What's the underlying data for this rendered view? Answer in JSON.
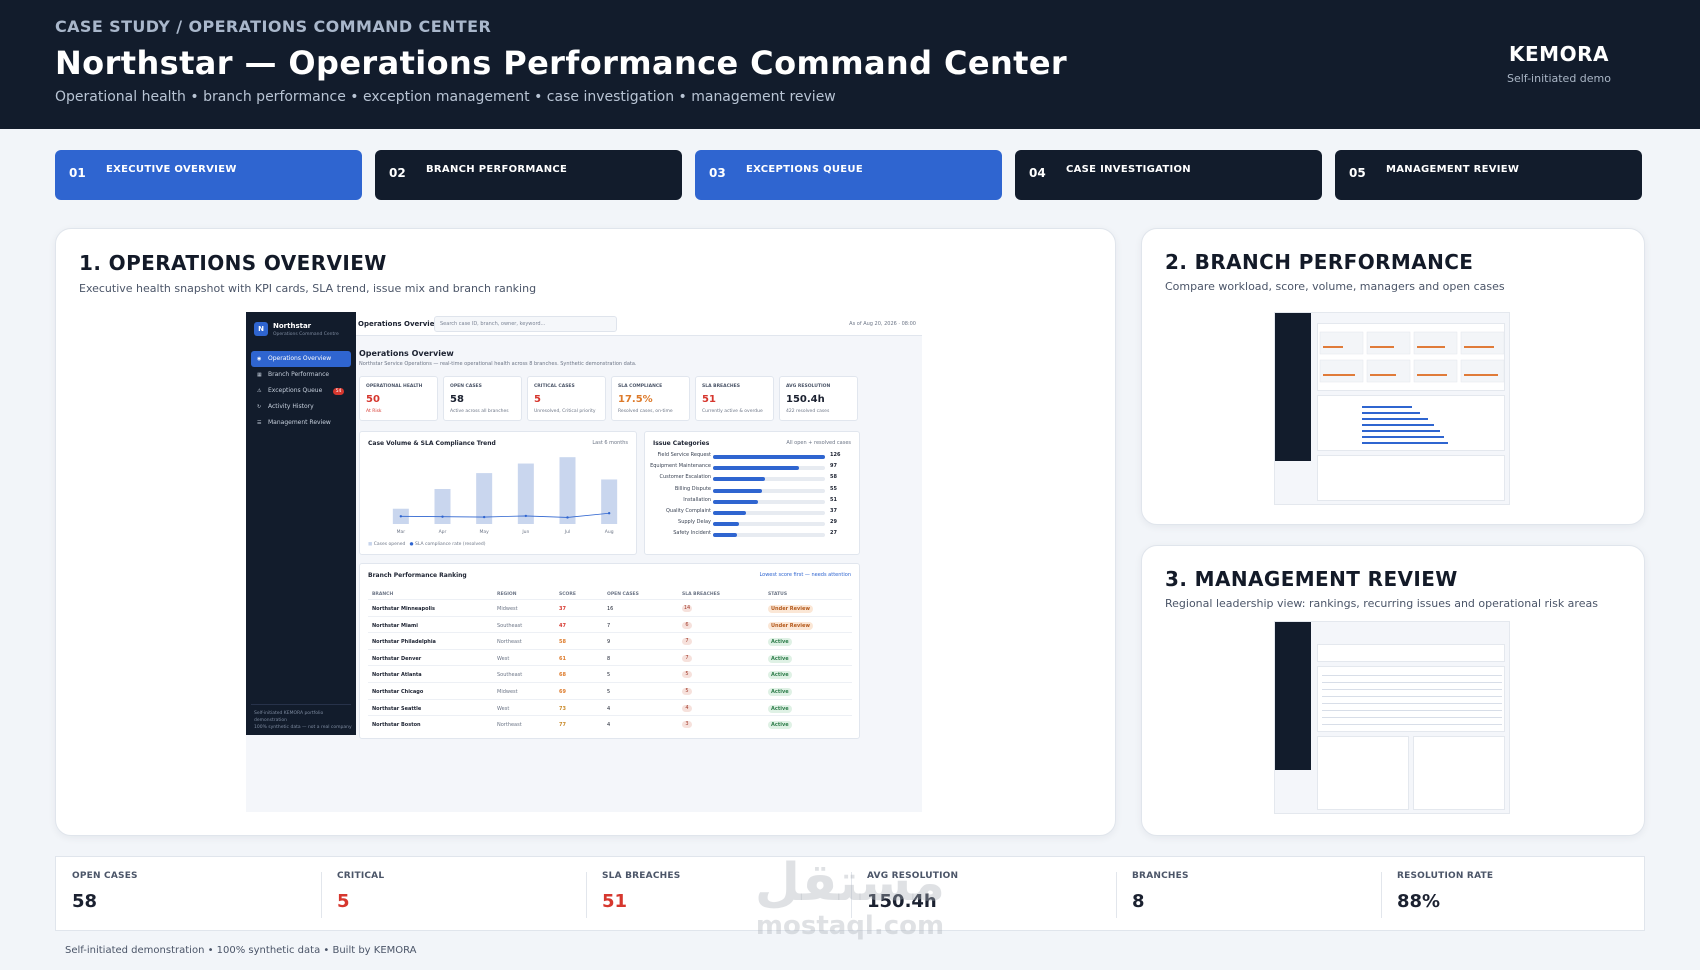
{
  "header": {
    "eyebrow": "CASE STUDY / OPERATIONS COMMAND CENTER",
    "title": "Northstar — Operations Performance Command Center",
    "subtitle": "Operational health • branch performance • exception management • case investigation • management review",
    "brand": "KEMORA",
    "brand_note": "Self-initiated demo"
  },
  "tabs": [
    {
      "num": "01",
      "label": "EXECUTIVE OVERVIEW",
      "active": true
    },
    {
      "num": "02",
      "label": "BRANCH PERFORMANCE",
      "active": false
    },
    {
      "num": "03",
      "label": "EXCEPTIONS QUEUE",
      "active": true
    },
    {
      "num": "04",
      "label": "CASE INVESTIGATION",
      "active": false
    },
    {
      "num": "05",
      "label": "MANAGEMENT REVIEW",
      "active": false
    }
  ],
  "overview": {
    "title": "1. OPERATIONS OVERVIEW",
    "desc": "Executive health snapshot with KPI cards, SLA trend, issue mix and branch ranking",
    "app": {
      "logo_letter": "N",
      "app_name": "Northstar",
      "app_sub": "Operations Command Centre",
      "nav": [
        {
          "label": "Operations Overview",
          "icon": "◉",
          "active": true
        },
        {
          "label": "Branch Performance",
          "icon": "▦",
          "active": false
        },
        {
          "label": "Exceptions Queue",
          "icon": "⚠",
          "active": false,
          "badge": "54"
        },
        {
          "label": "Activity History",
          "icon": "↻",
          "active": false
        },
        {
          "label": "Management Review",
          "icon": "☰",
          "active": false
        }
      ],
      "footer_1": "Self-initiated KEMORA portfolio",
      "footer_2": "demonstration",
      "footer_3": "100% synthetic data — not a real company",
      "topbar_title": "Operations Overview",
      "search_placeholder": "Search case ID, branch, owner, keyword...",
      "as_of": "As of Aug 20, 2026 · 08:00",
      "page_title": "Operations Overview",
      "page_sub": "Northstar Service Operations — real-time operational health across 8 branches. Synthetic demonstration data.",
      "kpis": [
        {
          "label": "OPERATIONAL HEALTH",
          "value": "50",
          "sub": "At Risk",
          "color": "#d6372e"
        },
        {
          "label": "OPEN CASES",
          "value": "58",
          "sub": "Active across all branches",
          "color": "#1b2130"
        },
        {
          "label": "CRITICAL CASES",
          "value": "5",
          "sub": "Unresolved, Critical priority",
          "color": "#d6372e"
        },
        {
          "label": "SLA COMPLIANCE",
          "value": "17.5%",
          "sub": "Resolved cases, on-time",
          "color": "#dd7a2a"
        },
        {
          "label": "SLA BREACHES",
          "value": "51",
          "sub": "Currently active & overdue",
          "color": "#d6372e"
        },
        {
          "label": "AVG RESOLUTION",
          "value": "150.4h",
          "sub": "422 resolved cases",
          "color": "#1b2130"
        }
      ],
      "trend": {
        "title": "Case Volume & SLA Compliance Trend",
        "range": "Last 6 months",
        "legend_bars": "Cases opened",
        "legend_line": "SLA compliance rate (resolved)"
      },
      "issues": {
        "title": "Issue Categories",
        "note": "All open + resolved cases"
      },
      "ranking": {
        "title": "Branch Performance Ranking",
        "note": "Lowest score first — needs attention",
        "headers": [
          "BRANCH",
          "REGION",
          "SCORE",
          "OPEN CASES",
          "SLA BREACHES",
          "STATUS"
        ],
        "rows": [
          {
            "branch": "Northstar Minneapolis",
            "region": "Midwest",
            "score": "37",
            "open": "16",
            "breaches": "14",
            "status": "Under Review"
          },
          {
            "branch": "Northstar Miami",
            "region": "Southeast",
            "score": "47",
            "open": "7",
            "breaches": "6",
            "status": "Under Review"
          },
          {
            "branch": "Northstar Philadelphia",
            "region": "Northeast",
            "score": "58",
            "open": "9",
            "breaches": "7",
            "status": "Active"
          },
          {
            "branch": "Northstar Denver",
            "region": "West",
            "score": "61",
            "open": "8",
            "breaches": "7",
            "status": "Active"
          },
          {
            "branch": "Northstar Atlanta",
            "region": "Southeast",
            "score": "68",
            "open": "5",
            "breaches": "5",
            "status": "Active"
          },
          {
            "branch": "Northstar Chicago",
            "region": "Midwest",
            "score": "69",
            "open": "5",
            "breaches": "5",
            "status": "Active"
          },
          {
            "branch": "Northstar Seattle",
            "region": "West",
            "score": "73",
            "open": "4",
            "breaches": "4",
            "status": "Active"
          },
          {
            "branch": "Northstar Boston",
            "region": "Northeast",
            "score": "77",
            "open": "4",
            "breaches": "3",
            "status": "Active"
          }
        ]
      }
    }
  },
  "chart_data": [
    {
      "type": "bar",
      "categories": [
        "Mar",
        "Apr",
        "May",
        "Jun",
        "Jul",
        "Aug"
      ],
      "series": [
        {
          "name": "Cases opened",
          "values": [
            24,
            55,
            80,
            95,
            105,
            70
          ]
        },
        {
          "name": "SLA compliance rate (resolved)",
          "values": [
            20,
            19,
            18,
            21,
            17,
            28
          ]
        }
      ]
    },
    {
      "type": "bar",
      "categories": [
        "Field Service Request",
        "Equipment Maintenance",
        "Customer Escalation",
        "Billing Dispute",
        "Installation",
        "Quality Complaint",
        "Supply Delay",
        "Safety Incident"
      ],
      "values": [
        126,
        97,
        58,
        55,
        51,
        37,
        29,
        27
      ],
      "xlim": [
        0,
        126
      ]
    }
  ],
  "branch_card": {
    "title": "2. BRANCH PERFORMANCE",
    "desc": "Compare workload, score, volume, managers and open cases"
  },
  "review_card": {
    "title": "3. MANAGEMENT REVIEW",
    "desc": "Regional leadership view: rankings, recurring issues and operational risk areas"
  },
  "summary": [
    {
      "label": "OPEN CASES",
      "value": "58",
      "color": "#1b2130"
    },
    {
      "label": "CRITICAL",
      "value": "5",
      "color": "#d6372e"
    },
    {
      "label": "SLA BREACHES",
      "value": "51",
      "color": "#d6372e"
    },
    {
      "label": "AVG RESOLUTION",
      "value": "150.4h",
      "color": "#1b2130"
    },
    {
      "label": "BRANCHES",
      "value": "8",
      "color": "#1b2130"
    },
    {
      "label": "RESOLUTION RATE",
      "value": "88%",
      "color": "#1b2130"
    }
  ],
  "footer": "Self-initiated demonstration • 100% synthetic data • Built by KEMORA",
  "watermark": {
    "arabic": "مستقل",
    "latin": "mostaql.com"
  }
}
